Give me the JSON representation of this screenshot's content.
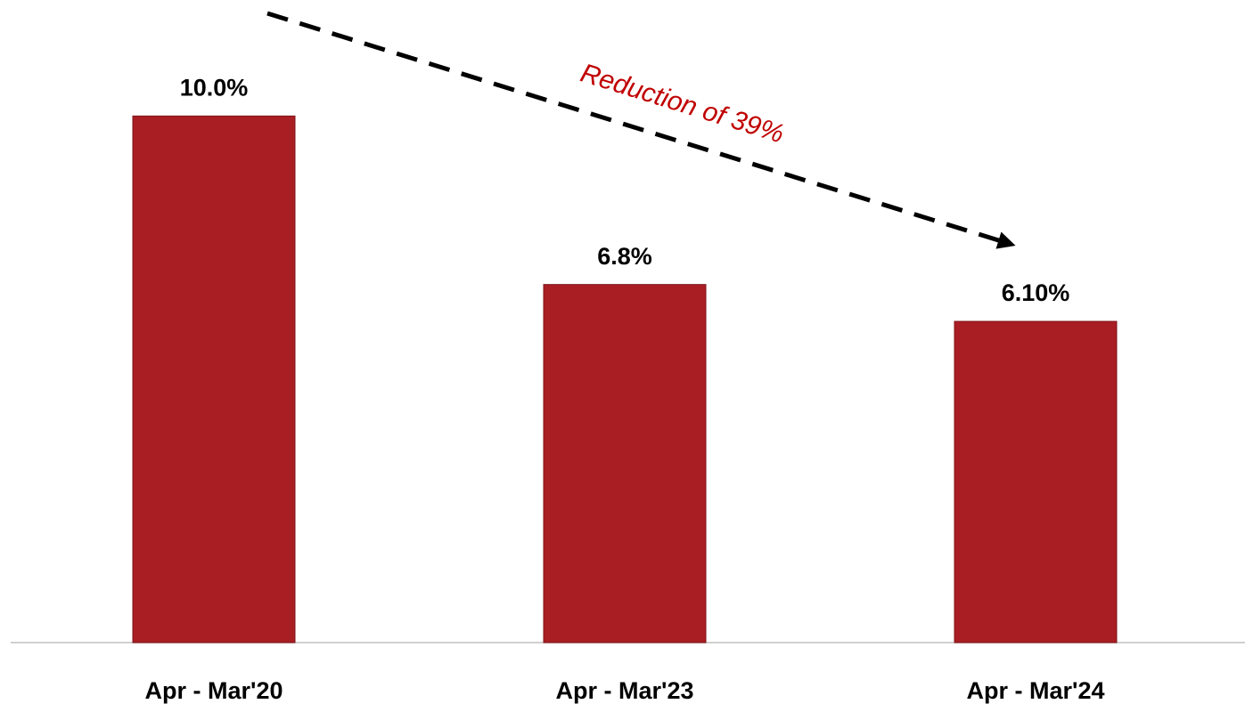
{
  "chart_data": {
    "type": "bar",
    "categories": [
      "Apr - Mar'20",
      "Apr - Mar'23",
      "Apr - Mar'24"
    ],
    "values": [
      10.0,
      6.8,
      6.1
    ],
    "value_labels": [
      "10.0%",
      "6.8%",
      "6.10%"
    ],
    "color": "#a91e23",
    "ylim": [
      0,
      12
    ],
    "annotation": "Reduction of 39%"
  }
}
